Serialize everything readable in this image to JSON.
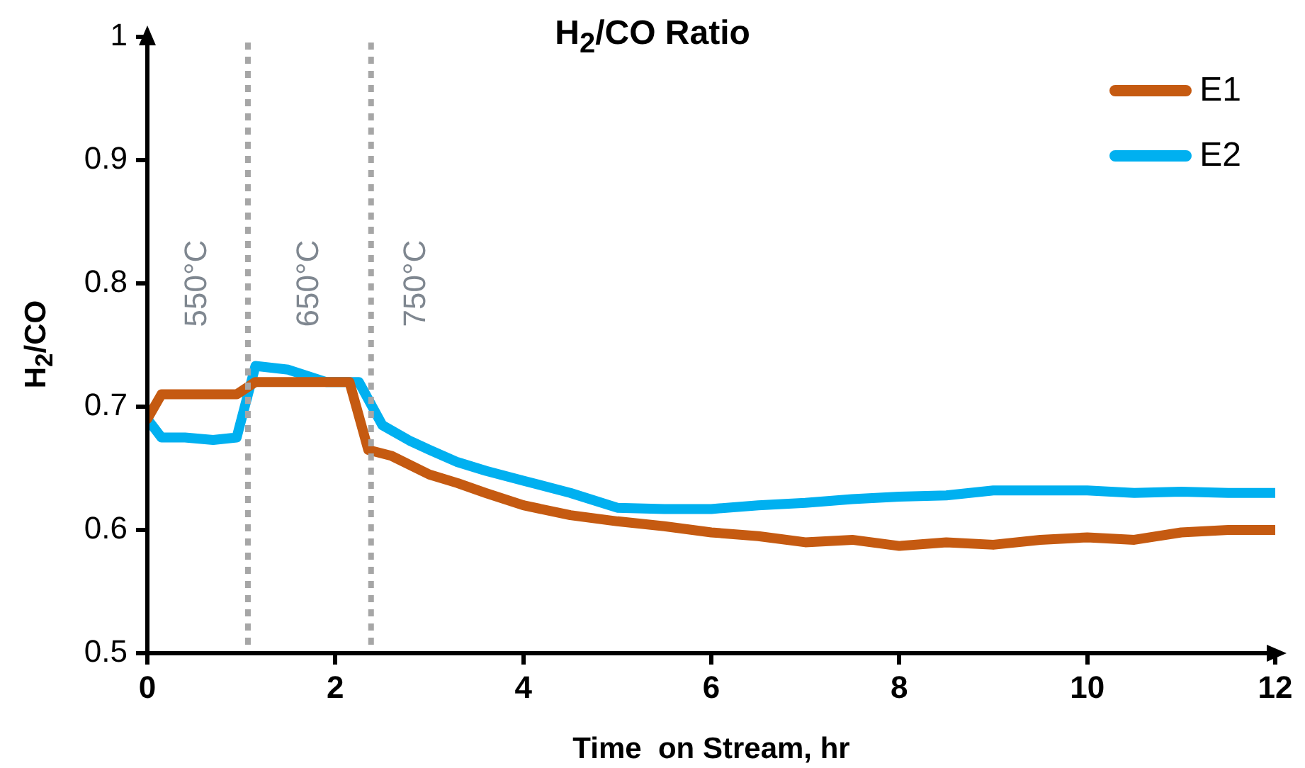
{
  "chart_data": {
    "type": "line",
    "title": "H$_{2}$/CO Ratio",
    "xlabel": "Time  on Stream, hr",
    "ylabel": "H$_{2}$/CO",
    "xlim": [
      0,
      12
    ],
    "xticks": [
      0,
      2,
      4,
      6,
      8,
      10,
      12
    ],
    "ylim": [
      0.5,
      1
    ],
    "yticks": [
      0.5,
      0.6,
      0.7,
      0.8,
      0.9,
      1
    ],
    "grid": false,
    "legend": "top right",
    "marker": "none",
    "line_style": "solid",
    "series": [
      {
        "name": "E1",
        "color": "#c55a11",
        "x": [
          0,
          0.15,
          0.4,
          0.7,
          0.95,
          1.15,
          1.5,
          1.9,
          2.15,
          2.35,
          2.6,
          3,
          3.3,
          3.6,
          4,
          4.5,
          5,
          5.5,
          6,
          6.5,
          7,
          7.5,
          8,
          8.5,
          9,
          9.5,
          10,
          10.5,
          11,
          11.5,
          12
        ],
        "values": [
          0.69,
          0.71,
          0.71,
          0.71,
          0.71,
          0.72,
          0.72,
          0.72,
          0.72,
          0.665,
          0.66,
          0.645,
          0.638,
          0.63,
          0.62,
          0.612,
          0.607,
          0.603,
          0.598,
          0.595,
          0.59,
          0.592,
          0.587,
          0.59,
          0.588,
          0.592,
          0.594,
          0.592,
          0.598,
          0.6,
          0.6
        ]
      },
      {
        "name": "E2",
        "color": "#00b0f0",
        "x": [
          0,
          0.15,
          0.4,
          0.7,
          0.95,
          1.15,
          1.5,
          1.9,
          2.25,
          2.5,
          2.8,
          3,
          3.3,
          3.6,
          4,
          4.5,
          5,
          5.5,
          6,
          6.5,
          7,
          7.5,
          8,
          8.5,
          9,
          9.5,
          10,
          10.5,
          11,
          11.5,
          12
        ],
        "values": [
          0.69,
          0.675,
          0.675,
          0.673,
          0.675,
          0.733,
          0.73,
          0.72,
          0.72,
          0.685,
          0.672,
          0.665,
          0.655,
          0.648,
          0.64,
          0.63,
          0.618,
          0.617,
          0.617,
          0.62,
          0.622,
          0.625,
          0.627,
          0.628,
          0.632,
          0.632,
          0.632,
          0.63,
          0.631,
          0.63,
          0.63
        ]
      }
    ],
    "ref_lines": [
      {
        "axis": "x",
        "value": 1.07,
        "color": "#a6a6a6",
        "line_style": "dotted"
      },
      {
        "axis": "x",
        "value": 2.38,
        "color": "#a6a6a6",
        "line_style": "dotted"
      }
    ],
    "annotations": [
      "550°C",
      "650°C",
      "750°C"
    ]
  }
}
